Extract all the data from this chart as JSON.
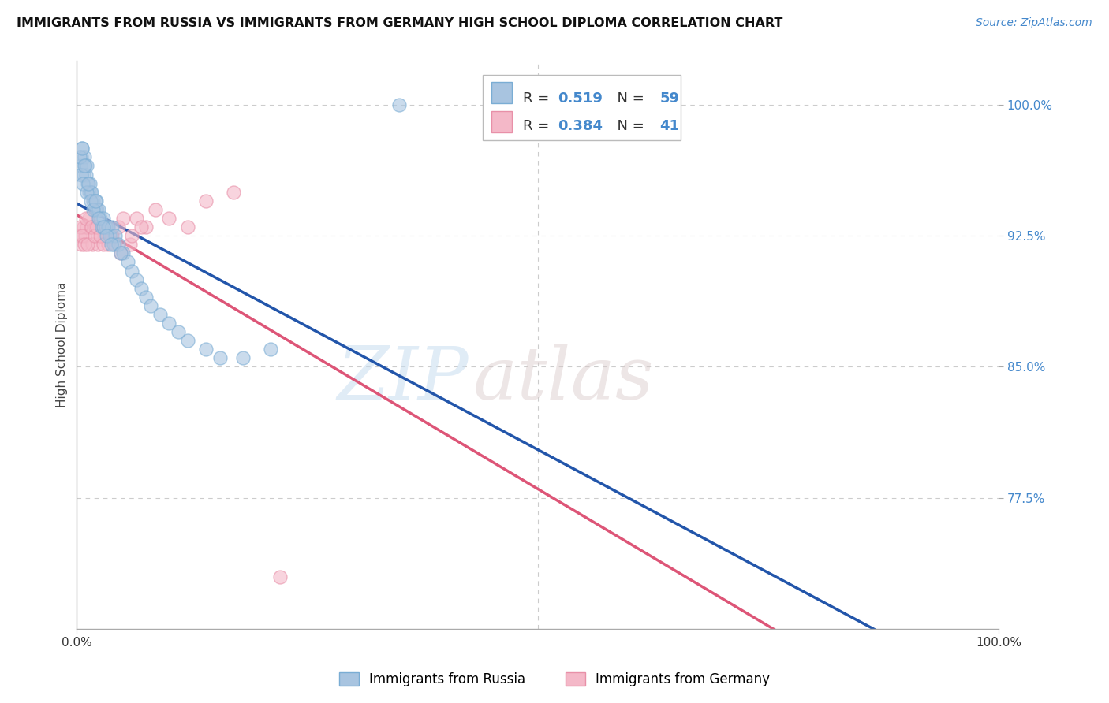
{
  "title": "IMMIGRANTS FROM RUSSIA VS IMMIGRANTS FROM GERMANY HIGH SCHOOL DIPLOMA CORRELATION CHART",
  "source": "Source: ZipAtlas.com",
  "ylabel": "High School Diploma",
  "xlim": [
    0.0,
    100.0
  ],
  "ylim": [
    70.0,
    102.5
  ],
  "yticks": [
    77.5,
    85.0,
    92.5,
    100.0
  ],
  "ytick_labels": [
    "77.5%",
    "85.0%",
    "92.5%",
    "100.0%"
  ],
  "russia_color": "#a8c4e0",
  "russia_edge_color": "#7aadd4",
  "germany_color": "#f4b8c8",
  "germany_edge_color": "#e890a8",
  "russia_line_color": "#2255aa",
  "germany_line_color": "#dd5577",
  "R_russia": 0.519,
  "N_russia": 59,
  "R_germany": 0.384,
  "N_germany": 41,
  "russia_x": [
    0.4,
    0.5,
    0.6,
    0.7,
    0.8,
    0.9,
    1.0,
    1.1,
    1.2,
    1.3,
    1.4,
    1.5,
    1.6,
    1.8,
    2.0,
    2.1,
    2.2,
    2.4,
    2.5,
    2.7,
    2.9,
    3.1,
    3.4,
    3.6,
    3.8,
    4.0,
    4.2,
    4.5,
    5.0,
    5.5,
    6.0,
    6.5,
    7.0,
    7.5,
    8.0,
    9.0,
    10.0,
    11.0,
    12.0,
    14.0,
    15.5,
    18.0,
    21.0,
    0.3,
    0.45,
    0.55,
    0.65,
    0.85,
    1.05,
    1.25,
    1.55,
    1.75,
    2.05,
    2.35,
    2.85,
    3.25,
    3.75,
    4.8,
    35.0
  ],
  "russia_y": [
    96.5,
    97.0,
    97.5,
    96.0,
    97.0,
    96.5,
    96.0,
    96.5,
    95.5,
    95.0,
    95.5,
    95.0,
    95.0,
    94.5,
    94.0,
    94.5,
    94.0,
    94.0,
    93.5,
    93.0,
    93.5,
    93.0,
    93.0,
    92.5,
    93.0,
    92.0,
    92.5,
    92.0,
    91.5,
    91.0,
    90.5,
    90.0,
    89.5,
    89.0,
    88.5,
    88.0,
    87.5,
    87.0,
    86.5,
    86.0,
    85.5,
    85.5,
    86.0,
    97.0,
    96.0,
    97.5,
    95.5,
    96.5,
    95.0,
    95.5,
    94.5,
    94.0,
    94.5,
    93.5,
    93.0,
    92.5,
    92.0,
    91.5,
    100.0
  ],
  "germany_x": [
    0.3,
    0.5,
    0.7,
    0.9,
    1.1,
    1.3,
    1.5,
    1.7,
    2.0,
    2.3,
    2.6,
    3.0,
    3.4,
    3.8,
    4.5,
    5.0,
    5.8,
    6.5,
    7.5,
    8.5,
    10.0,
    12.0,
    14.0,
    17.0,
    0.4,
    0.6,
    0.8,
    1.0,
    1.2,
    1.6,
    1.9,
    2.2,
    2.5,
    2.9,
    3.3,
    3.7,
    4.2,
    4.8,
    6.0,
    7.0,
    22.0
  ],
  "germany_y": [
    92.5,
    92.0,
    93.0,
    92.5,
    93.0,
    93.5,
    93.0,
    92.0,
    93.0,
    92.0,
    92.5,
    92.5,
    92.0,
    92.5,
    93.0,
    93.5,
    92.0,
    93.5,
    93.0,
    94.0,
    93.5,
    93.0,
    94.5,
    95.0,
    93.0,
    92.5,
    92.0,
    93.5,
    92.0,
    93.0,
    92.5,
    93.0,
    92.5,
    92.0,
    93.0,
    92.5,
    92.0,
    91.5,
    92.5,
    93.0,
    73.0
  ],
  "watermark_zip": "ZIP",
  "watermark_atlas": "atlas",
  "background_color": "#ffffff",
  "grid_color": "#cccccc"
}
